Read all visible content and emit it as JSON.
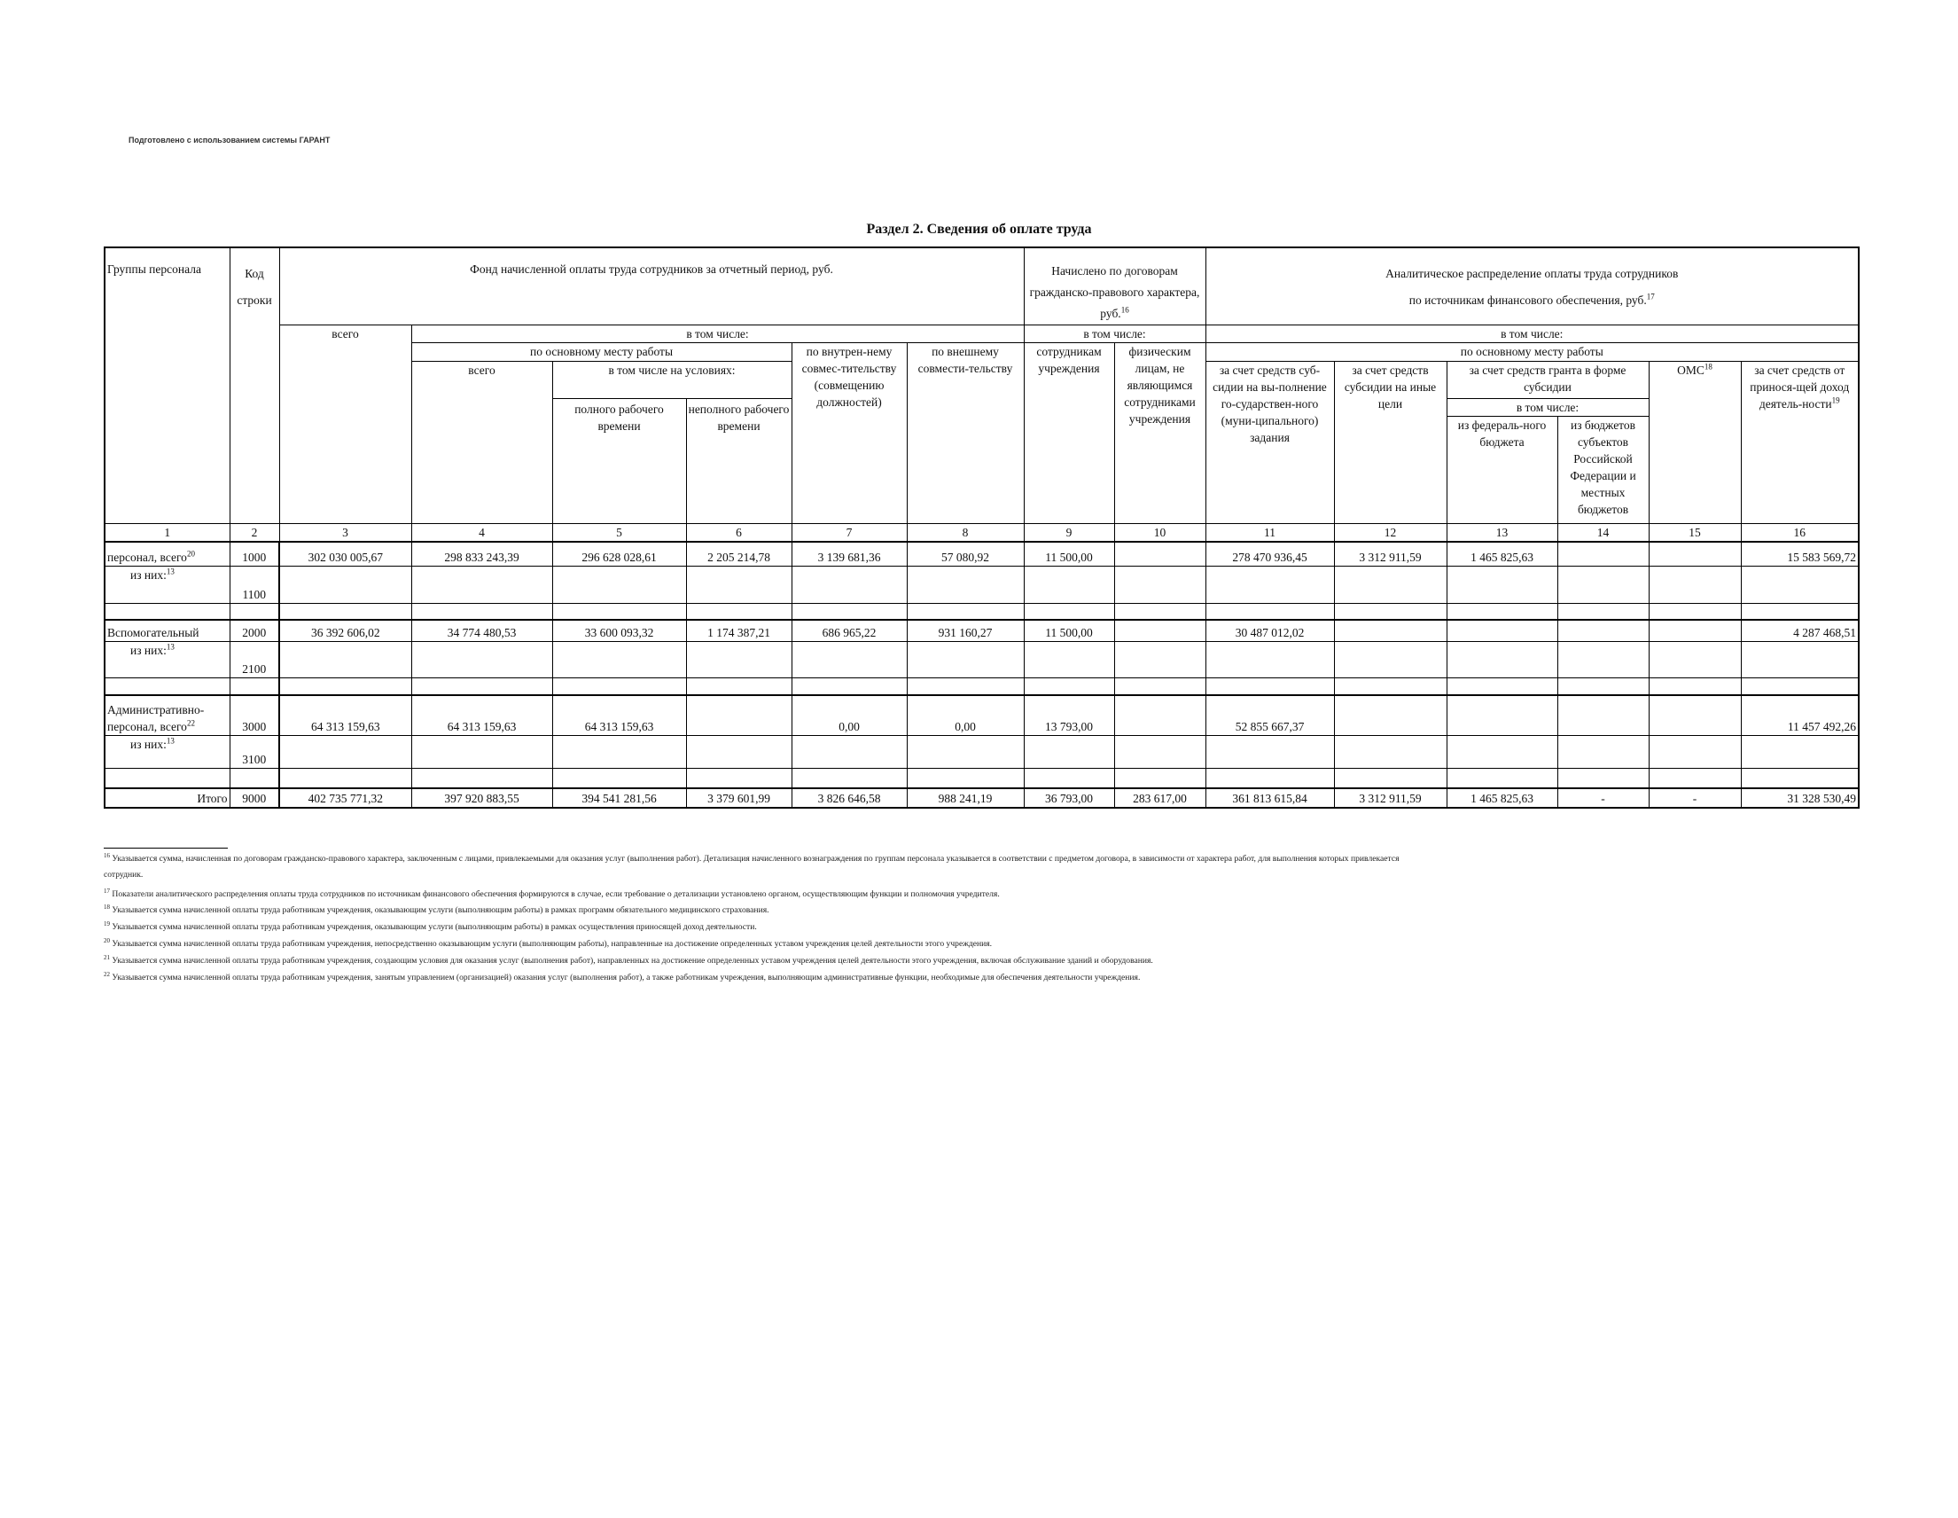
{
  "garant_note": "Подготовлено с использованием системы ГАРАНТ",
  "title": "Раздел 2. Сведения об оплате труда",
  "header": {
    "groups": "Группы персонала",
    "code": "Код строки",
    "fund": "Фонд начисленной оплаты труда сотрудников за отчетный период, руб.",
    "contracts": "Начислено по договорам гражданско-правового характера, руб.",
    "contracts_sup": "16",
    "analytic_line1": "Аналитическое распределение оплаты труда сотрудников",
    "analytic_line2": "по источникам финансового обеспечения, руб.",
    "analytic_sup": "17",
    "total": "всего",
    "including": "в том числе:",
    "main_place": "по основному месту работы",
    "main_total": "всего",
    "conditions": "в том числе на условиях:",
    "full_time": "полного рабочего времени",
    "part_time": "неполного рабочего времени",
    "internal": "по внутрен-нему совмес-тительству (совмещению должностей)",
    "external": "по внешнему совмести-тельству",
    "employees": "сотрудникам учреждения",
    "individuals": "физическим лицам, не являющимся сотрудниками учреждения",
    "subsidy_task": "за счет средств суб-сидии на вы-полнение го-сударствен-ного (муни-ципального) задания",
    "subsidy_other": "за счет средств субсидии на иные цели",
    "grant": "за счет средств гранта в форме субсидии",
    "federal": "из федераль-ного бюджета",
    "regional": "из бюджетов субъектов Российской Федерации и местных бюджетов",
    "oms": "ОМС",
    "oms_sup": "18",
    "income": "за счет средств от принося-щей доход деятель-ности",
    "income_sup": "19"
  },
  "column_numbers": [
    "1",
    "2",
    "3",
    "4",
    "5",
    "6",
    "7",
    "8",
    "9",
    "10",
    "11",
    "12",
    "13",
    "14",
    "15",
    "16"
  ],
  "rows": [
    {
      "label": "персонал, всего",
      "sup": "20",
      "code": "1000",
      "values": [
        "302 030 005,67",
        "298 833 243,39",
        "296 628 028,61",
        "2 205 214,78",
        "3 139 681,36",
        "57 080,92",
        "11 500,00",
        "",
        "278 470 936,45",
        "3 312 911,59",
        "1 465 825,63",
        "",
        "",
        "15 583 569,72"
      ]
    },
    {
      "label": "из них:",
      "sup": "13",
      "code": "1100",
      "indent": true,
      "values": [
        "",
        "",
        "",
        "",
        "",
        "",
        "",
        "",
        "",
        "",
        "",
        "",
        "",
        ""
      ]
    },
    {
      "label": "",
      "code": "",
      "values": [
        "",
        "",
        "",
        "",
        "",
        "",
        "",
        "",
        "",
        "",
        "",
        "",
        "",
        ""
      ]
    },
    {
      "label": "Вспомогательный",
      "code": "2000",
      "values": [
        "36 392 606,02",
        "34 774 480,53",
        "33 600 093,32",
        "1 174 387,21",
        "686 965,22",
        "931 160,27",
        "11 500,00",
        "",
        "30 487 012,02",
        "",
        "",
        "",
        "",
        "4 287 468,51"
      ]
    },
    {
      "label": "из них:",
      "sup": "13",
      "code": "2100",
      "indent": true,
      "values": [
        "",
        "",
        "",
        "",
        "",
        "",
        "",
        "",
        "",
        "",
        "",
        "",
        "",
        ""
      ]
    },
    {
      "label": "",
      "code": "",
      "values": [
        "",
        "",
        "",
        "",
        "",
        "",
        "",
        "",
        "",
        "",
        "",
        "",
        "",
        ""
      ]
    },
    {
      "label": "Административно-персонал, всего",
      "sup": "22",
      "code": "3000",
      "values": [
        "64 313 159,63",
        "64 313 159,63",
        "64 313 159,63",
        "",
        "0,00",
        "0,00",
        "13 793,00",
        "",
        "52 855 667,37",
        "",
        "",
        "",
        "",
        "11 457 492,26"
      ]
    },
    {
      "label": "из них:",
      "sup": "13",
      "code": "3100",
      "indent": true,
      "values": [
        "",
        "",
        "",
        "",
        "",
        "",
        "",
        "",
        "",
        "",
        "",
        "",
        "",
        ""
      ]
    },
    {
      "label": "",
      "code": "",
      "values": [
        "",
        "",
        "",
        "",
        "",
        "",
        "",
        "",
        "",
        "",
        "",
        "",
        "",
        ""
      ]
    },
    {
      "label": "Итого",
      "code": "9000",
      "total": true,
      "values": [
        "402 735 771,32",
        "397 920 883,55",
        "394 541 281,56",
        "3 379 601,99",
        "3 826 646,58",
        "988 241,19",
        "36 793,00",
        "283 617,00",
        "361 813 615,84",
        "3 312 911,59",
        "1 465 825,63",
        "-",
        "-",
        "31 328 530,49"
      ]
    }
  ],
  "footnotes": [
    {
      "num": "16",
      "text": "Указывается сумма, начисленная по договорам гражданско-правового характера, заключенным с лицами, привлекаемыми для оказания услуг (выполнения работ). Детализация начисленного вознаграждения по группам персонала указывается в соответствии с предметом договора, в зависимости от характера работ, для выполнения которых привлекается"
    },
    {
      "num": "",
      "text": "сотрудник."
    },
    {
      "num": "17",
      "text": "Показатели аналитического распределения оплаты труда сотрудников по источникам финансового обеспечения формируются в случае, если требование о детализации установлено органом, осуществляющим функции и полномочия учредителя."
    },
    {
      "num": "18",
      "text": "Указывается сумма начисленной оплаты труда работникам учреждения, оказывающим услуги (выполняющим работы) в рамках программ обязательного медицинского страхования."
    },
    {
      "num": "19",
      "text": "Указывается сумма начисленной оплаты труда работникам учреждения, оказывающим услуги (выполняющим работы) в рамках осуществления приносящей доход деятельности."
    },
    {
      "num": "20",
      "text": "Указывается сумма начисленной оплаты труда работникам учреждения, непосредственно оказывающим услуги (выполняющим работы), направленные на достижение определенных уставом учреждения целей деятельности этого учреждения."
    },
    {
      "num": "21",
      "text": "Указывается сумма начисленной оплаты труда работникам учреждения, создающим условия для оказания услуг (выполнения работ), направленных на достижение определенных уставом учреждения целей деятельности этого учреждения, включая обслуживание зданий и оборудования."
    },
    {
      "num": "22",
      "text": "Указывается сумма начисленной оплаты труда работникам учреждения, занятым управлением (организацией) оказания услуг (выполнения работ), а также работникам учреждения, выполняющим административные функции, необходимые для обеспечения деятельности учреждения."
    }
  ]
}
